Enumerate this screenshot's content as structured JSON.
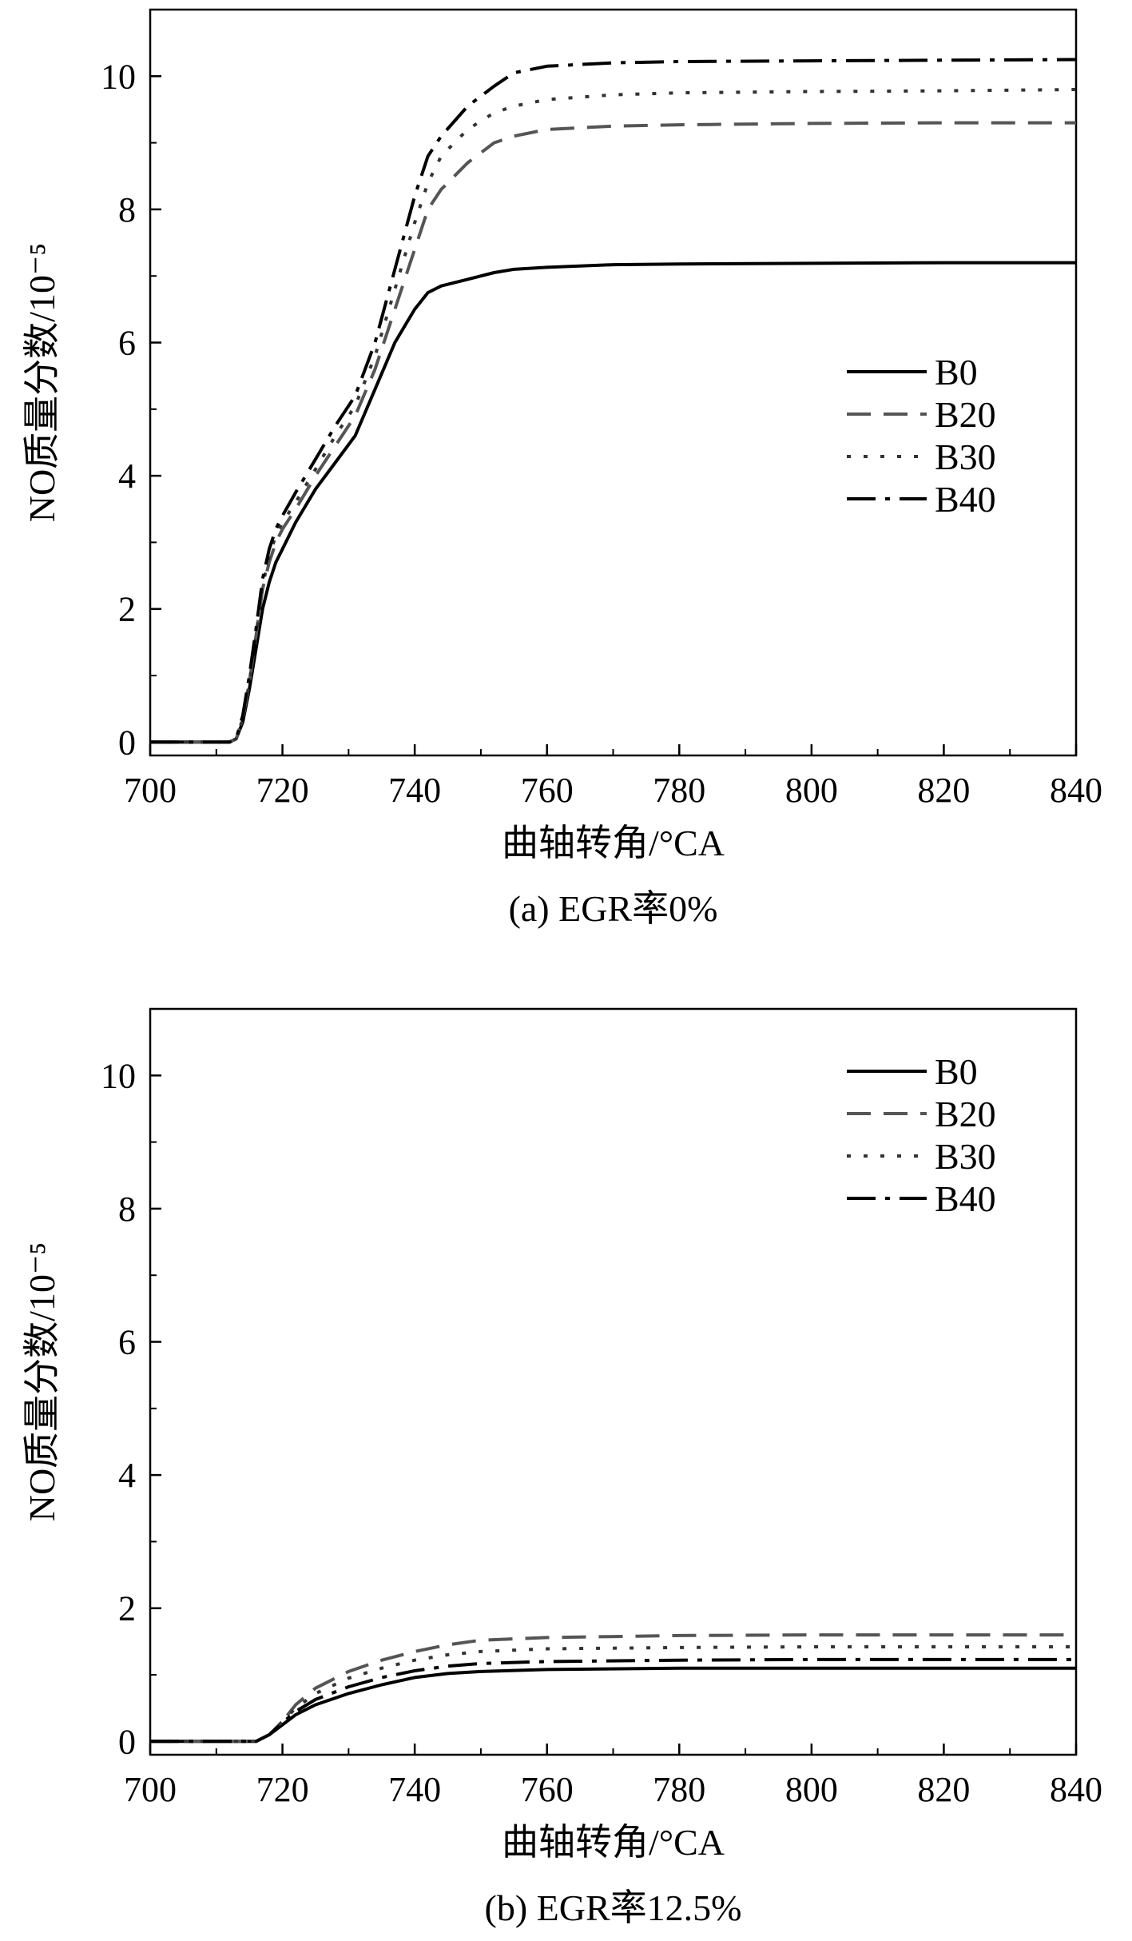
{
  "chart_data": [
    {
      "type": "line",
      "caption": "(a) EGR率0%",
      "xlabel": "曲轴转角/°CA",
      "ylabel": "NO质量分数/10⁻⁵",
      "xlim": [
        700,
        840
      ],
      "ylim": [
        -0.2,
        11
      ],
      "xticks": [
        "700",
        "720",
        "740",
        "760",
        "780",
        "800",
        "820",
        "840"
      ],
      "yticks": [
        "0",
        "2",
        "4",
        "6",
        "8",
        "10"
      ],
      "legend_position": "right",
      "series": [
        {
          "name": "B0",
          "style": "solid",
          "color": "#000000",
          "x": [
            700,
            712,
            713,
            714,
            715,
            716,
            717,
            718,
            719,
            720,
            722,
            725,
            728,
            731,
            734,
            737,
            740,
            742,
            744,
            748,
            752,
            755,
            760,
            770,
            780,
            800,
            820,
            840
          ],
          "y": [
            0,
            0,
            0.05,
            0.3,
            0.8,
            1.4,
            2.0,
            2.4,
            2.7,
            2.9,
            3.3,
            3.8,
            4.2,
            4.6,
            5.3,
            6.0,
            6.5,
            6.75,
            6.85,
            6.95,
            7.05,
            7.1,
            7.13,
            7.17,
            7.18,
            7.19,
            7.2,
            7.2
          ]
        },
        {
          "name": "B20",
          "style": "dashed",
          "color": "#555555",
          "x": [
            700,
            712,
            713,
            714,
            715,
            716,
            717,
            718,
            719,
            720,
            722,
            725,
            728,
            731,
            734,
            737,
            740,
            742,
            744,
            748,
            752,
            755,
            760,
            770,
            780,
            800,
            820,
            840
          ],
          "y": [
            0,
            0,
            0.05,
            0.35,
            0.9,
            1.6,
            2.3,
            2.7,
            3.0,
            3.2,
            3.5,
            4.0,
            4.45,
            4.9,
            5.6,
            6.5,
            7.4,
            8.0,
            8.3,
            8.7,
            9.0,
            9.1,
            9.2,
            9.25,
            9.27,
            9.29,
            9.3,
            9.3
          ]
        },
        {
          "name": "B30",
          "style": "dotted",
          "color": "#333333",
          "x": [
            700,
            712,
            713,
            714,
            715,
            716,
            717,
            718,
            719,
            720,
            722,
            725,
            728,
            731,
            734,
            737,
            740,
            742,
            744,
            748,
            752,
            755,
            760,
            770,
            780,
            800,
            820,
            840
          ],
          "y": [
            0,
            0,
            0.05,
            0.35,
            0.9,
            1.6,
            2.35,
            2.8,
            3.1,
            3.3,
            3.6,
            4.1,
            4.6,
            5.05,
            5.8,
            6.8,
            7.8,
            8.4,
            8.8,
            9.2,
            9.45,
            9.55,
            9.65,
            9.72,
            9.75,
            9.77,
            9.78,
            9.8
          ]
        },
        {
          "name": "B40",
          "style": "dashdot",
          "color": "#000000",
          "x": [
            700,
            712,
            713,
            714,
            715,
            716,
            717,
            718,
            719,
            720,
            722,
            725,
            728,
            731,
            734,
            737,
            740,
            742,
            744,
            748,
            752,
            755,
            760,
            770,
            780,
            800,
            820,
            840
          ],
          "y": [
            0,
            0,
            0.05,
            0.4,
            1.0,
            1.7,
            2.45,
            2.9,
            3.2,
            3.4,
            3.75,
            4.25,
            4.75,
            5.2,
            6.0,
            7.1,
            8.2,
            8.8,
            9.1,
            9.55,
            9.85,
            10.05,
            10.15,
            10.2,
            10.22,
            10.23,
            10.24,
            10.25
          ]
        }
      ]
    },
    {
      "type": "line",
      "caption": "(b) EGR率12.5%",
      "xlabel": "曲轴转角/°CA",
      "ylabel": "NO质量分数/10⁻⁵",
      "xlim": [
        700,
        840
      ],
      "ylim": [
        -0.2,
        11
      ],
      "xticks": [
        "700",
        "720",
        "740",
        "760",
        "780",
        "800",
        "820",
        "840"
      ],
      "yticks": [
        "0",
        "2",
        "4",
        "6",
        "8",
        "10"
      ],
      "legend_position": "top-right",
      "series": [
        {
          "name": "B0",
          "style": "solid",
          "color": "#000000",
          "x": [
            700,
            716,
            718,
            720,
            722,
            725,
            730,
            735,
            740,
            745,
            750,
            760,
            780,
            800,
            820,
            840
          ],
          "y": [
            0,
            0,
            0.1,
            0.25,
            0.4,
            0.55,
            0.72,
            0.85,
            0.96,
            1.02,
            1.05,
            1.08,
            1.1,
            1.1,
            1.1,
            1.1
          ]
        },
        {
          "name": "B20",
          "style": "dashed",
          "color": "#555555",
          "x": [
            700,
            716,
            718,
            720,
            722,
            725,
            730,
            735,
            740,
            745,
            750,
            760,
            780,
            800,
            820,
            840
          ],
          "y": [
            0,
            0,
            0.1,
            0.3,
            0.55,
            0.8,
            1.05,
            1.22,
            1.35,
            1.45,
            1.52,
            1.56,
            1.59,
            1.6,
            1.6,
            1.6
          ]
        },
        {
          "name": "B30",
          "style": "dotted",
          "color": "#333333",
          "x": [
            700,
            716,
            718,
            720,
            722,
            725,
            730,
            735,
            740,
            745,
            750,
            760,
            780,
            800,
            820,
            840
          ],
          "y": [
            0,
            0,
            0.1,
            0.3,
            0.5,
            0.72,
            0.95,
            1.1,
            1.22,
            1.3,
            1.35,
            1.39,
            1.41,
            1.42,
            1.42,
            1.42
          ]
        },
        {
          "name": "B40",
          "style": "dashdot",
          "color": "#000000",
          "x": [
            700,
            716,
            718,
            720,
            722,
            725,
            730,
            735,
            740,
            745,
            750,
            760,
            780,
            800,
            820,
            840
          ],
          "y": [
            0,
            0,
            0.1,
            0.28,
            0.45,
            0.63,
            0.82,
            0.96,
            1.06,
            1.13,
            1.17,
            1.2,
            1.22,
            1.23,
            1.23,
            1.23
          ]
        }
      ]
    }
  ]
}
